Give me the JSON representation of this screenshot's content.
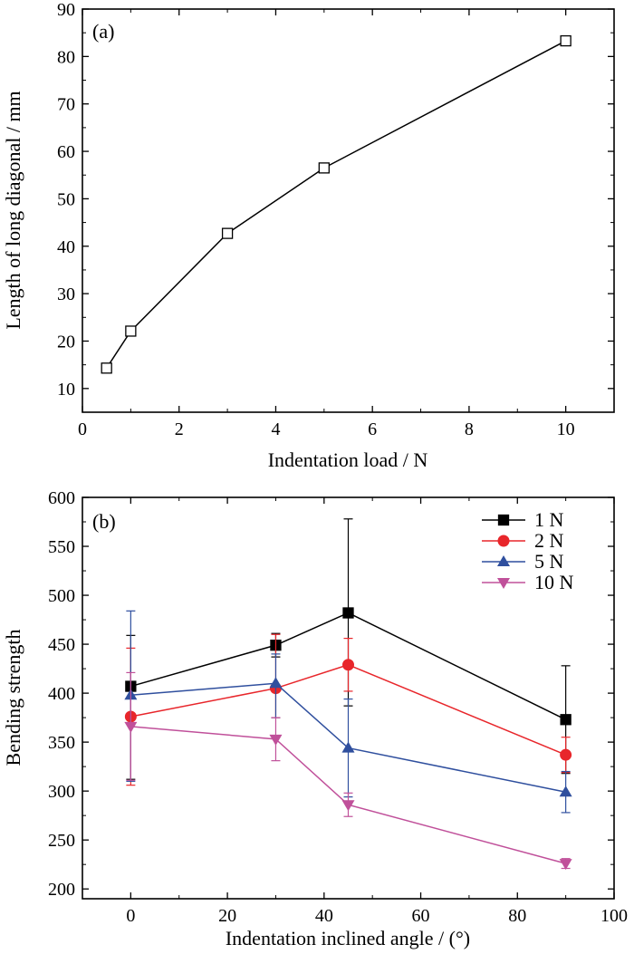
{
  "chart_data": [
    {
      "type": "line",
      "panel_label": "(a)",
      "xlabel": "Indentation load / N",
      "ylabel": "Length of long diagonal / mm",
      "xlim": [
        0,
        11
      ],
      "ylim": [
        5,
        90
      ],
      "xticks": [
        0,
        2,
        4,
        6,
        8,
        10
      ],
      "yticks": [
        10,
        20,
        30,
        40,
        50,
        60,
        70,
        80,
        90
      ],
      "grid": false,
      "series": [
        {
          "marker": "open-square",
          "color": "#000000",
          "x": [
            0.5,
            1,
            3,
            5,
            10
          ],
          "y": [
            14.3,
            22.1,
            42.7,
            56.5,
            83.3
          ]
        }
      ]
    },
    {
      "type": "line",
      "panel_label": "(b)",
      "xlabel": "Indentation inclined angle / (°)",
      "ylabel": "Bending strength",
      "xlim": [
        -10,
        100
      ],
      "ylim": [
        190,
        600
      ],
      "xticks": [
        0,
        20,
        40,
        60,
        80,
        100
      ],
      "yticks": [
        200,
        250,
        300,
        350,
        400,
        450,
        500,
        550,
        600
      ],
      "grid": false,
      "legend_position": "top-right",
      "series": [
        {
          "name": "1 N",
          "marker": "square",
          "color": "#000000",
          "x": [
            0,
            30,
            45,
            90
          ],
          "y": [
            407,
            449,
            482,
            373
          ],
          "err_low": [
            95,
            12,
            95,
            55
          ],
          "err_high": [
            52,
            12,
            96,
            55
          ]
        },
        {
          "name": "2 N",
          "marker": "circle",
          "color": "#e8262b",
          "x": [
            0,
            30,
            45,
            90
          ],
          "y": [
            376,
            405,
            429,
            337
          ],
          "err_low": [
            70,
            30,
            27,
            18
          ],
          "err_high": [
            70,
            55,
            27,
            18
          ]
        },
        {
          "name": "5 N",
          "marker": "triangle-up",
          "color": "#2f4f9e",
          "x": [
            0,
            30,
            45,
            90
          ],
          "y": [
            398,
            410,
            344,
            299
          ],
          "err_low": [
            88,
            35,
            50,
            21
          ],
          "err_high": [
            86,
            30,
            50,
            21
          ]
        },
        {
          "name": "10 N",
          "marker": "triangle-down",
          "color": "#c0509a",
          "x": [
            0,
            30,
            45,
            90
          ],
          "y": [
            366,
            353,
            286,
            226
          ],
          "err_low": [
            55,
            22,
            12,
            5
          ],
          "err_high": [
            55,
            22,
            12,
            5
          ]
        }
      ]
    }
  ]
}
